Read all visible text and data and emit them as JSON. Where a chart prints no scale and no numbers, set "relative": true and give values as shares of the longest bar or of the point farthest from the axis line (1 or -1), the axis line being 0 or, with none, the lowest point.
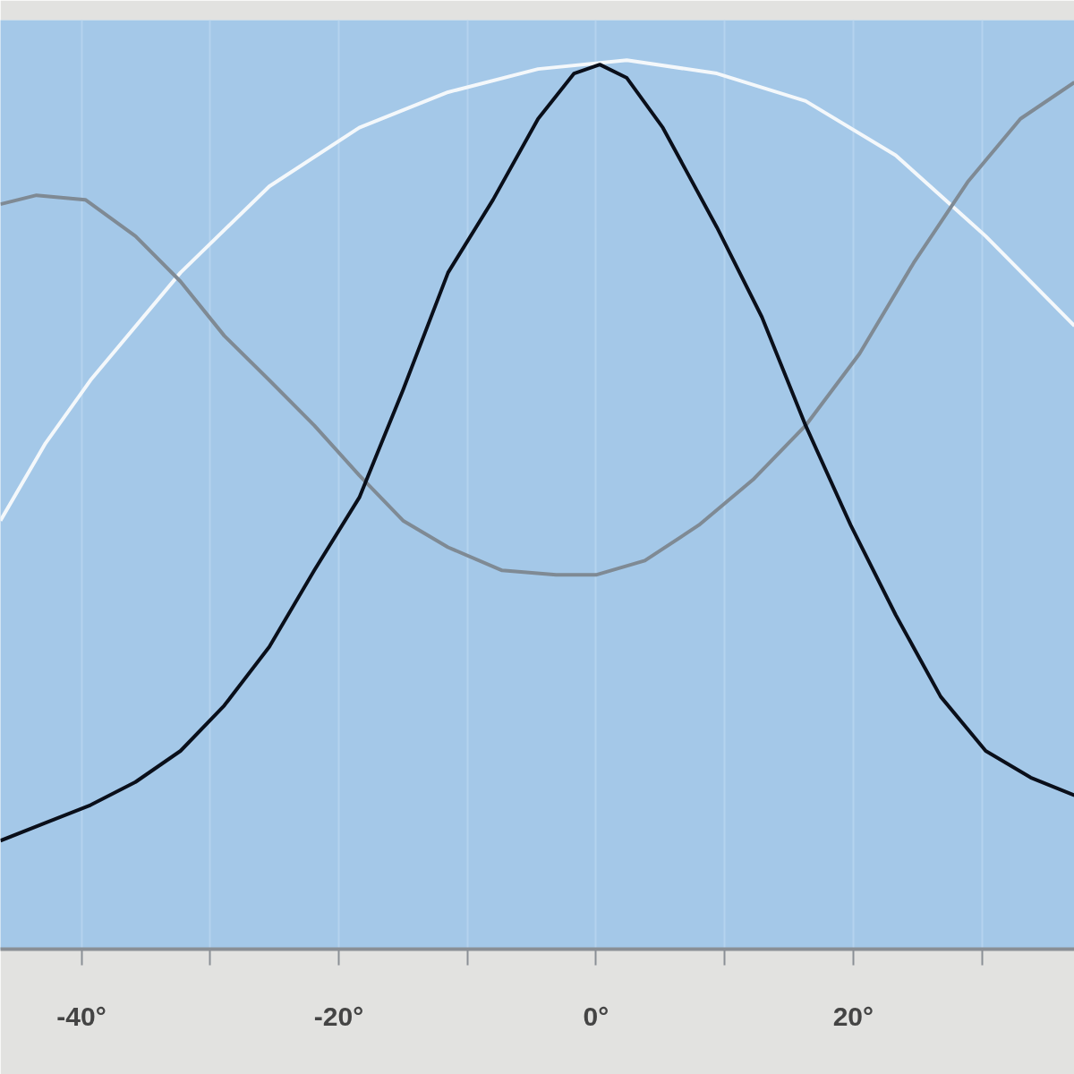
{
  "chart_data": {
    "type": "line",
    "relative": true,
    "xlim": [
      -46.3,
      37.2
    ],
    "xticks": [
      {
        "value": -40,
        "label": "-40°"
      },
      {
        "value": -30,
        "label": null
      },
      {
        "value": -20,
        "label": "-20°"
      },
      {
        "value": -10,
        "label": null
      },
      {
        "value": 0,
        "label": "0°"
      },
      {
        "value": 10,
        "label": null
      },
      {
        "value": 20,
        "label": "20°"
      },
      {
        "value": 30,
        "label": null
      }
    ],
    "tick_labels": "x",
    "line_style": "solid",
    "grid": "x",
    "series": [
      {
        "color": "#f4f8fb",
        "x": [
          -46.3,
          -42.8,
          -39.3,
          -32.3,
          -25.4,
          -18.4,
          -11.5,
          -4.5,
          2.4,
          9.4,
          16.3,
          23.3,
          30.3,
          37.2
        ],
        "values": [
          0.482,
          0.569,
          0.64,
          0.761,
          0.858,
          0.924,
          0.964,
          0.99,
          1.0,
          0.985,
          0.954,
          0.893,
          0.802,
          0.701
        ]
      },
      {
        "color": "#7f8a94",
        "x": [
          -46.3,
          -43.5,
          -39.7,
          -35.8,
          -32.3,
          -28.9,
          -25.4,
          -21.9,
          -18.4,
          -15.0,
          -11.5,
          -7.3,
          -3.1,
          0,
          3.8,
          8.0,
          12.2,
          16.3,
          20.5,
          24.7,
          28.9,
          33.0,
          37.2
        ],
        "values": [
          0.838,
          0.848,
          0.843,
          0.802,
          0.751,
          0.69,
          0.64,
          0.589,
          0.533,
          0.482,
          0.452,
          0.426,
          0.421,
          0.421,
          0.437,
          0.477,
          0.528,
          0.589,
          0.67,
          0.772,
          0.863,
          0.934,
          0.975
        ]
      },
      {
        "color": "#0a0f1a",
        "x": [
          -46.3,
          -42.8,
          -39.3,
          -35.8,
          -32.3,
          -28.9,
          -25.4,
          -21.9,
          -18.4,
          -15.0,
          -11.5,
          -8.0,
          -4.5,
          -1.7,
          0.3,
          2.4,
          5.2,
          9.4,
          12.9,
          16.3,
          19.8,
          23.3,
          26.8,
          30.3,
          33.8,
          37.2
        ],
        "values": [
          0.122,
          0.142,
          0.162,
          0.188,
          0.223,
          0.274,
          0.34,
          0.426,
          0.508,
          0.629,
          0.761,
          0.843,
          0.934,
          0.985,
          0.995,
          0.98,
          0.924,
          0.812,
          0.711,
          0.589,
          0.477,
          0.376,
          0.284,
          0.223,
          0.193,
          0.173
        ]
      }
    ]
  }
}
